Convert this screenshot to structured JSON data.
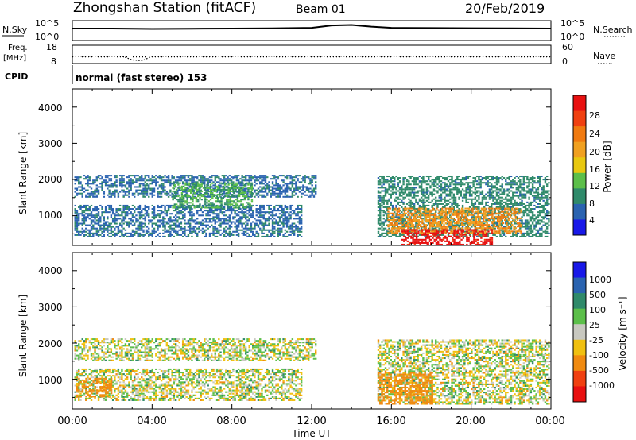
{
  "header": {
    "station": "Zhongshan Station (fitACF)",
    "beam": "Beam 01",
    "date": "20/Feb/2019"
  },
  "nsky": {
    "label": "N.Sky",
    "ticks": [
      "10^5",
      "10^0"
    ]
  },
  "nsearch": {
    "label": "N.Search",
    "ticks": [
      "10^5",
      "10^0"
    ]
  },
  "freq": {
    "label_line1": "Freq.",
    "label_line2": "[MHz]",
    "ticks": [
      "18",
      "8"
    ]
  },
  "nave": {
    "label": "Nave",
    "ticks": [
      "60",
      "0"
    ]
  },
  "cpid": {
    "label": "CPID",
    "value": "normal (fast stereo) 153"
  },
  "power_panel": {
    "ylabel": "Slant Range [km]",
    "yticks": [
      "4000",
      "3000",
      "2000",
      "1000"
    ],
    "colorbar_label": "Power [dB]",
    "colorbar_ticks": [
      "28",
      "24",
      "20",
      "16",
      "12",
      "8",
      "4"
    ],
    "colors": [
      "#1818e8",
      "#2a63b0",
      "#2f8a6a",
      "#5cbf4a",
      "#e8c810",
      "#f0a020",
      "#f07a10",
      "#f04010",
      "#e81010"
    ]
  },
  "velocity_panel": {
    "ylabel": "Slant Range [km]",
    "yticks": [
      "4000",
      "3000",
      "2000",
      "1000"
    ],
    "colorbar_label": "Velocity [m s⁻¹]",
    "colorbar_ticks": [
      "1000",
      "500",
      "100",
      "25",
      "-25",
      "-100",
      "-500",
      "-1000"
    ],
    "colors": [
      "#1818e8",
      "#2a63b0",
      "#2f8a6a",
      "#5cbf4a",
      "#c8c8c0",
      "#f0c010",
      "#f08a10",
      "#f04010",
      "#e81010"
    ]
  },
  "xaxis": {
    "label": "Time UT",
    "ticks": [
      "00:00",
      "04:00",
      "08:00",
      "12:00",
      "16:00",
      "20:00",
      "00:00"
    ]
  },
  "chart_data": [
    {
      "type": "line",
      "name": "N.Sky / N.Search",
      "x_hours": [
        0,
        2,
        4,
        6,
        8,
        10,
        12,
        13,
        14,
        15,
        16,
        18,
        20,
        22,
        24
      ],
      "series": [
        {
          "name": "N.Sky",
          "values": [
            1000,
            1000,
            800,
            900,
            1000,
            1100,
            1500,
            6000,
            8000,
            3000,
            1500,
            1300,
            1200,
            1100,
            1000
          ]
        }
      ],
      "ylim": [
        1,
        100000
      ],
      "yscale": "log"
    },
    {
      "type": "scatter",
      "name": "Freq. [MHz] / Nave",
      "x_hours": [
        0,
        2.5,
        3,
        3.5,
        4,
        6,
        12,
        18,
        24
      ],
      "series": [
        {
          "name": "Freq",
          "values": [
            12,
            12,
            10,
            9.5,
            12,
            12,
            12,
            12,
            12
          ]
        },
        {
          "name": "Nave",
          "values": [
            22,
            22,
            22,
            22,
            22,
            22,
            22,
            22,
            22
          ]
        }
      ]
    },
    {
      "type": "heatmap",
      "title": "Power [dB]",
      "xlabel": "Time UT",
      "ylabel": "Slant Range [km]",
      "xlim_hours": [
        0,
        24
      ],
      "ylim_km": [
        180,
        4500
      ],
      "color_range": [
        0,
        30
      ],
      "regions": [
        {
          "t": [
            0.1,
            12.2
          ],
          "r": [
            1500,
            2100
          ],
          "value": 6
        },
        {
          "t": [
            0.1,
            11.5
          ],
          "r": [
            400,
            1300
          ],
          "value": 6
        },
        {
          "t": [
            5.0,
            9.0
          ],
          "r": [
            1200,
            1900
          ],
          "value": 10
        },
        {
          "t": [
            15.3,
            23.9
          ],
          "r": [
            400,
            2100
          ],
          "value": 8
        },
        {
          "t": [
            15.8,
            22.5
          ],
          "r": [
            500,
            1200
          ],
          "value": 20
        },
        {
          "t": [
            16.5,
            21.0
          ],
          "r": [
            180,
            600
          ],
          "value": 28
        }
      ]
    },
    {
      "type": "heatmap",
      "title": "Velocity [m s⁻¹]",
      "xlabel": "Time UT",
      "ylabel": "Slant Range [km]",
      "xlim_hours": [
        0,
        24
      ],
      "ylim_km": [
        180,
        4500
      ],
      "color_range": [
        -1000,
        1000
      ],
      "regions": [
        {
          "t": [
            0.1,
            12.2
          ],
          "r": [
            1500,
            2100
          ],
          "value": 0
        },
        {
          "t": [
            0.1,
            11.5
          ],
          "r": [
            400,
            1300
          ],
          "value": 0
        },
        {
          "t": [
            15.3,
            23.9
          ],
          "r": [
            300,
            2100
          ],
          "value": 0
        },
        {
          "t": [
            15.3,
            18.0
          ],
          "r": [
            300,
            1200
          ],
          "value": -300
        },
        {
          "t": [
            0.2,
            2.0
          ],
          "r": [
            500,
            1000
          ],
          "value": -200
        }
      ]
    }
  ]
}
